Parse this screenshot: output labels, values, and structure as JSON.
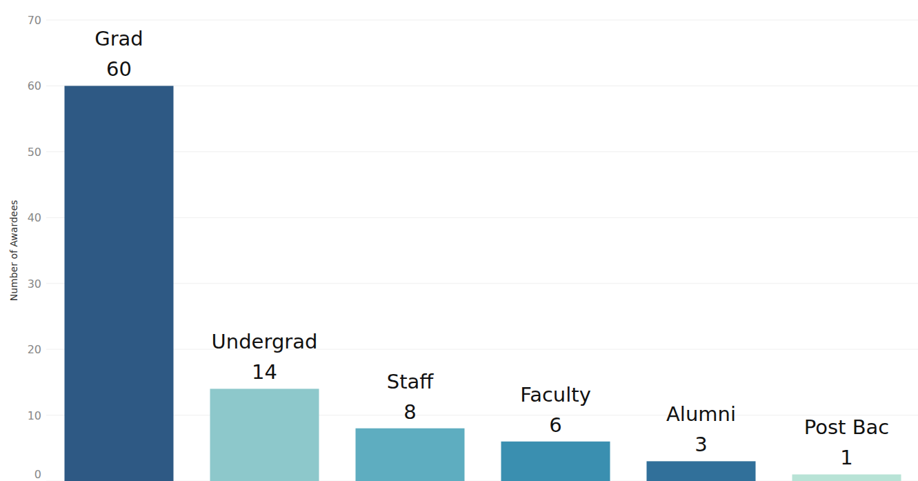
{
  "chart_data": {
    "type": "bar",
    "y_label": "Number of Awardees",
    "categories": [
      "Grad",
      "Undergrad",
      "Staff",
      "Faculty",
      "Alumni",
      "Post Bac"
    ],
    "values": [
      60,
      14,
      8,
      6,
      3,
      1
    ],
    "colors": [
      "#2e5984",
      "#8dc8cb",
      "#5eadc0",
      "#3a8fb0",
      "#31709a",
      "#b8e3d6"
    ],
    "ylim": [
      0,
      70
    ],
    "yticks": [
      0,
      10,
      20,
      30,
      40,
      50,
      60,
      70
    ],
    "grid": true,
    "data_labels": true,
    "tick_labels": "y"
  }
}
